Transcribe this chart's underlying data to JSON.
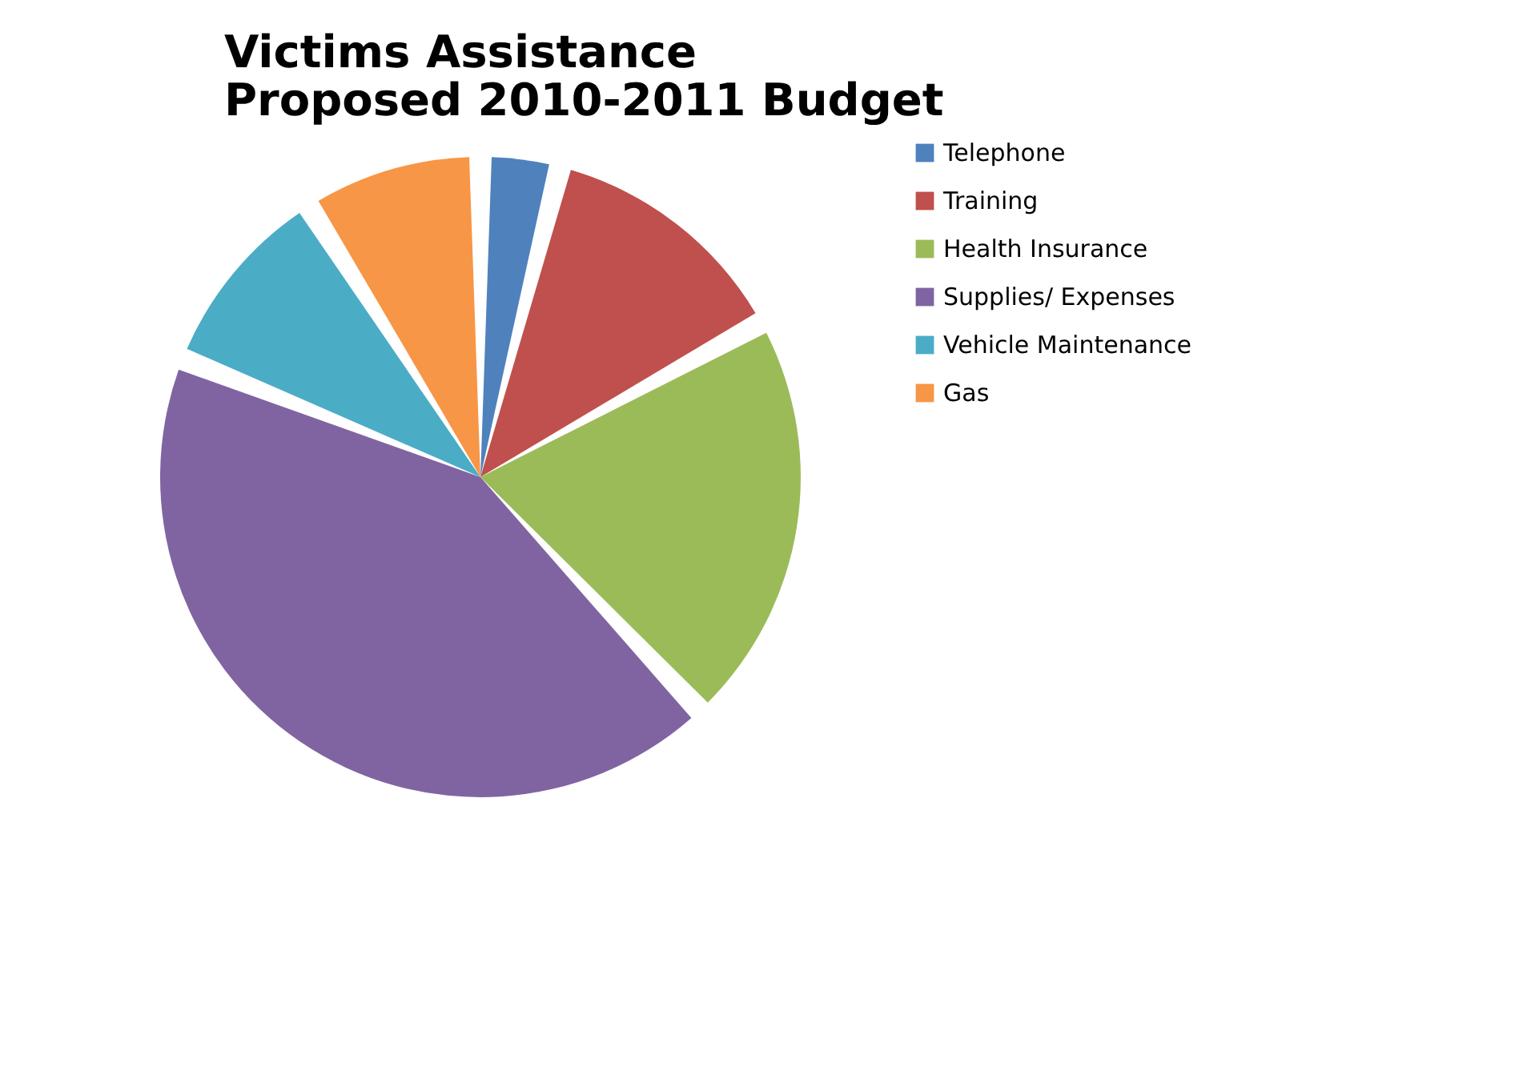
{
  "chart_data": {
    "type": "pie",
    "title": "Victims Assistance\nProposed 2010-2011 Budget",
    "categories": [
      "Telephone",
      "Training",
      "Health Insurance",
      "Supplies/ Expenses",
      "Vehicle Maintenance",
      "Gas"
    ],
    "values": [
      4,
      13,
      21,
      43,
      10,
      9
    ],
    "colors": [
      "#4f81bd",
      "#c0504d",
      "#9bbb59",
      "#8064a2",
      "#4bacc6",
      "#f79646"
    ],
    "legend": "right"
  }
}
